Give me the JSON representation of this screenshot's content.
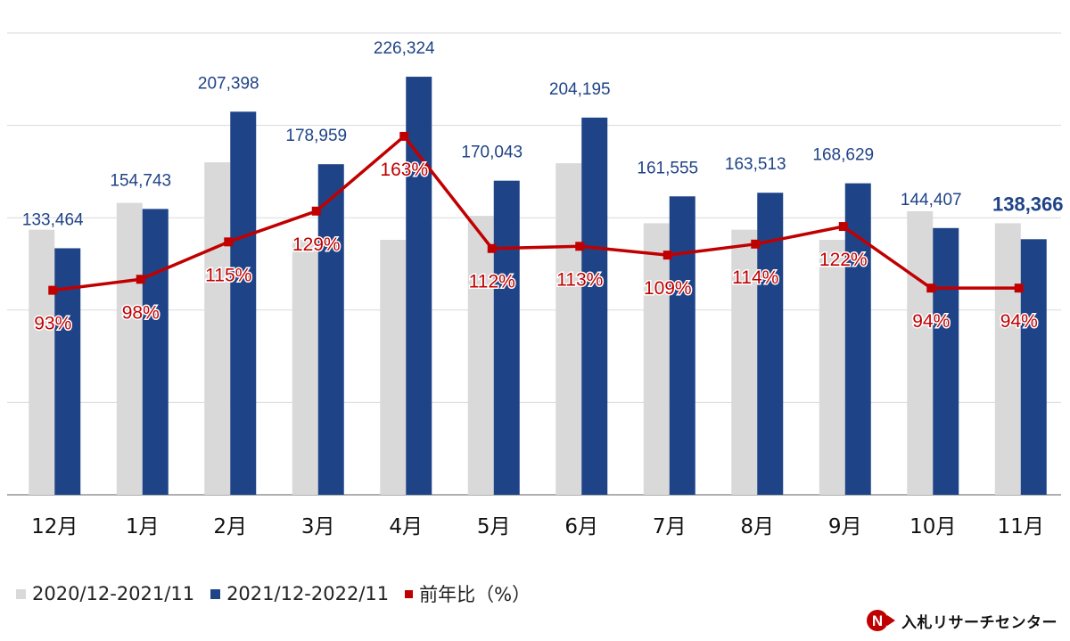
{
  "chart_data": {
    "type": "bar+line",
    "categories": [
      "12月",
      "1月",
      "2月",
      "3月",
      "4月",
      "5月",
      "6月",
      "7月",
      "8月",
      "9月",
      "10月",
      "11月"
    ],
    "series": [
      {
        "name": "2020/12-2021/11",
        "type": "bar",
        "color": "#d9d9d9",
        "values": [
          143500,
          158000,
          180000,
          138000,
          138000,
          151000,
          179500,
          147000,
          143500,
          138000,
          153500,
          147000
        ]
      },
      {
        "name": "2021/12-2022/11",
        "type": "bar",
        "color": "#1f4387",
        "values": [
          133464,
          154743,
          207398,
          178959,
          226324,
          170043,
          204195,
          161555,
          163513,
          168629,
          144407,
          138366
        ],
        "labels": [
          "133,464",
          "154,743",
          "207,398",
          "178,959",
          "226,324",
          "170,043",
          "204,195",
          "161,555",
          "163,513",
          "168,629",
          "144,407",
          "138,366"
        ]
      },
      {
        "name": "前年比（%）",
        "type": "line",
        "axis": "secondary",
        "color": "#c00000",
        "values": [
          93,
          98,
          115,
          129,
          163,
          112,
          113,
          109,
          114,
          122,
          94,
          94
        ],
        "labels": [
          "93%",
          "98%",
          "115%",
          "129%",
          "163%",
          "112%",
          "113%",
          "109%",
          "114%",
          "122%",
          "94%",
          "94%"
        ]
      }
    ],
    "ylim": [
      0,
      250000
    ],
    "y2lim": [
      0,
      210
    ],
    "grid": true,
    "legend": "bottom-left"
  },
  "brand": {
    "name": "入札リサーチセンター",
    "mark": "N"
  }
}
